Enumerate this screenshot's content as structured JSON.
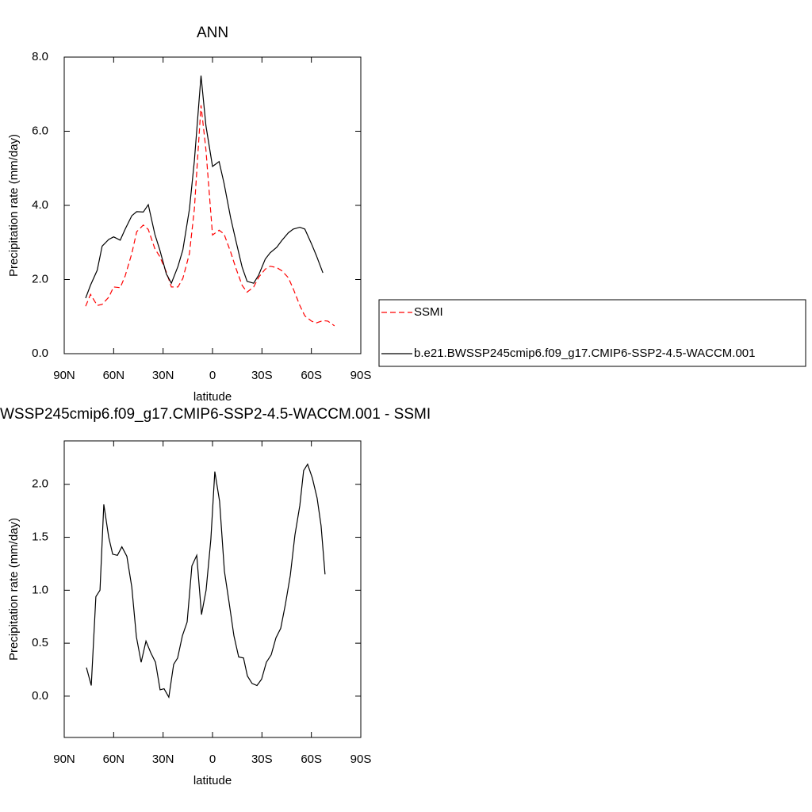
{
  "chart_data": [
    {
      "type": "line",
      "title": "ANN",
      "xlabel": "latitude",
      "ylabel": "Precipitation rate (mm/day)",
      "x": [
        77,
        74,
        70,
        67,
        63,
        60,
        56,
        53,
        49,
        46,
        42,
        39,
        35,
        32,
        28,
        25,
        21,
        18,
        14,
        11,
        7,
        4,
        0,
        -4,
        -7,
        -11,
        -14,
        -18,
        -21,
        -25,
        -28,
        -32,
        -35,
        -39,
        -42,
        -46,
        -49,
        -53,
        -56,
        -60,
        -63,
        -67,
        -70,
        -74
      ],
      "xlim": [
        90,
        -90
      ],
      "xticks": [
        {
          "value": 90,
          "label": "90N"
        },
        {
          "value": 60,
          "label": "60N"
        },
        {
          "value": 30,
          "label": "30N"
        },
        0,
        {
          "value": -30,
          "label": "30S"
        },
        {
          "value": -60,
          "label": "60S"
        },
        {
          "value": -90,
          "label": "90S"
        }
      ],
      "ylim": [
        0,
        8
      ],
      "yticks": [
        {
          "value": 0,
          "label": "0.0"
        },
        {
          "value": 2,
          "label": "2.0"
        },
        {
          "value": 4,
          "label": "4.0"
        },
        {
          "value": 6,
          "label": "6.0"
        },
        {
          "value": 8,
          "label": "8.0"
        }
      ],
      "legend": "right",
      "series": [
        {
          "name": "SSMI",
          "color": "#ff0000",
          "dashed": true,
          "values": [
            1.28,
            1.6,
            1.3,
            1.33,
            1.52,
            1.8,
            1.78,
            2.1,
            2.7,
            3.29,
            3.47,
            3.35,
            2.83,
            2.62,
            2.2,
            1.8,
            1.8,
            2.03,
            2.7,
            3.9,
            6.7,
            5.5,
            3.2,
            3.33,
            3.23,
            2.74,
            2.33,
            1.84,
            1.66,
            1.8,
            2.06,
            2.28,
            2.36,
            2.32,
            2.24,
            2.05,
            1.75,
            1.3,
            1.02,
            0.88,
            0.83,
            0.89,
            0.88,
            0.75
          ]
        },
        {
          "name": "b.e21.BWSSP245cmip6.f09_g17.CMIP6-SSP2-4.5-WACCM.001",
          "color": "#000000",
          "dashed": false,
          "values": [
            1.5,
            1.85,
            2.25,
            2.9,
            3.08,
            3.15,
            3.06,
            3.36,
            3.72,
            3.83,
            3.82,
            4.02,
            3.22,
            2.8,
            2.15,
            1.9,
            2.35,
            2.8,
            3.9,
            5.2,
            7.5,
            6.15,
            5.05,
            5.18,
            4.6,
            3.66,
            3.08,
            2.33,
            1.95,
            1.9,
            2.12,
            2.55,
            2.72,
            2.87,
            3.05,
            3.26,
            3.36,
            3.41,
            3.36,
            2.97,
            2.65,
            2.18,
            null,
            null
          ]
        }
      ]
    },
    {
      "type": "line",
      "title": "WSSP245cmip6.f09_g17.CMIP6-SSP2-4.5-WACCM.001 - SSMI",
      "xlabel": "latitude",
      "ylabel": "Precipitation rate (mm/day)",
      "x": [
        76.5,
        73.6,
        70.8,
        68.3,
        66,
        63,
        60.6,
        57.7,
        55,
        52,
        49,
        46.2,
        43.3,
        40.4,
        37.5,
        34.6,
        31.8,
        29.4,
        26.5,
        23.6,
        21.2,
        18.3,
        15.4,
        12.5,
        9.6,
        6.7,
        3.9,
        1,
        -1.4,
        -4.3,
        -7.2,
        -10.1,
        -13,
        -15.9,
        -18.8,
        -21.2,
        -24,
        -27,
        -29.8,
        -32.7,
        -35.6,
        -38.5,
        -41.4,
        -44.3,
        -47.2,
        -50,
        -53,
        -55.3,
        -57.7,
        -60.6,
        -63.5,
        -65.9,
        -68.3
      ],
      "xlim": [
        90,
        -90
      ],
      "xticks": [
        {
          "value": 90,
          "label": "90N"
        },
        {
          "value": 60,
          "label": "60N"
        },
        {
          "value": 30,
          "label": "30N"
        },
        0,
        {
          "value": -30,
          "label": "30S"
        },
        {
          "value": -60,
          "label": "60S"
        },
        {
          "value": -90,
          "label": "90S"
        }
      ],
      "ylim": [
        -0.39,
        2.41
      ],
      "yticks": [
        {
          "value": 0,
          "label": "0.0"
        },
        0.5,
        {
          "value": 1,
          "label": "1.0"
        },
        1.5,
        {
          "value": 2,
          "label": "2.0"
        }
      ],
      "series": [
        {
          "color": "#000000",
          "dashed": false,
          "values": [
            0.27,
            0.1,
            0.94,
            1.0,
            1.81,
            1.5,
            1.34,
            1.33,
            1.41,
            1.32,
            1.03,
            0.56,
            0.32,
            0.52,
            0.41,
            0.32,
            0.06,
            0.07,
            -0.01,
            0.3,
            0.36,
            0.57,
            0.7,
            1.23,
            1.33,
            0.77,
            1.0,
            1.48,
            2.12,
            1.84,
            1.18,
            0.88,
            0.57,
            0.37,
            0.36,
            0.19,
            0.12,
            0.1,
            0.16,
            0.32,
            0.39,
            0.55,
            0.64,
            0.87,
            1.14,
            1.52,
            1.8,
            2.13,
            2.19,
            2.06,
            1.87,
            1.61,
            1.15
          ]
        }
      ]
    }
  ]
}
